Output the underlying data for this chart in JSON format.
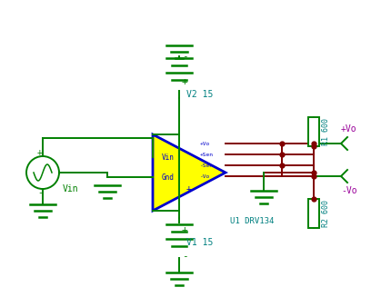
{
  "bg_color": "#ffffff",
  "wire_color": "#800000",
  "green_color": "#008000",
  "blue_color": "#0000cc",
  "cyan_color": "#008080",
  "magenta_color": "#990099",
  "yellow_fill": "#ffff00",
  "v2_label": "V2 15",
  "v1_label": "V1 15",
  "u1_label": "U1 DRV134",
  "vin_label": "Vin",
  "r1_label": "R1 600",
  "r2_label": "R2 600",
  "vpos_label": "+Vo",
  "vneg_label": "-Vo",
  "figw": 4.19,
  "figh": 3.38,
  "dpi": 100
}
